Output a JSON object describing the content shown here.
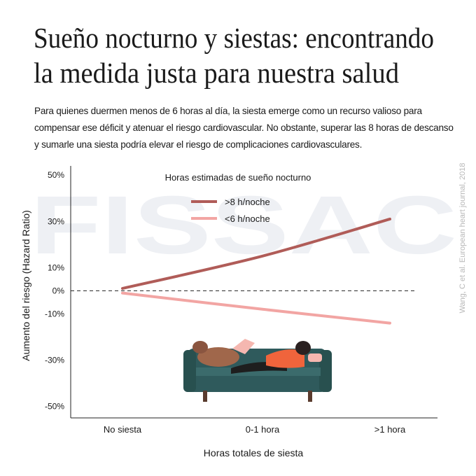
{
  "title": [
    "Sueño nocturno y siestas: encontrando",
    "la medida justa para  nuestra salud"
  ],
  "description": "Para quienes duermen menos de 6 horas al día, la siesta emerge como un recurso valioso para compensar ese déficit y atenuar el riesgo cardiovascular. No obstante, superar las 8 horas de descanso y sumarle una siesta podría elevar el riesgo de complicaciones cardiovasculares.",
  "watermark": "FISSAC",
  "source": "Wang, C et al. European heart journal, 2018",
  "chart_data": {
    "type": "line",
    "categories": [
      "No siesta",
      "0-1 hora",
      ">1 hora"
    ],
    "x_label": "Horas totales de siesta",
    "y_label": "Aumento del riesgo (Hazard Ratio)",
    "legend_title": "Horas estimadas de sueño nocturno",
    "ylim": [
      -55,
      54
    ],
    "yticks": [
      {
        "value": 50,
        "label": "50%"
      },
      {
        "value": 30,
        "label": "30%"
      },
      {
        "value": 10,
        "label": "10%"
      },
      {
        "value": 0,
        "label": "0%"
      },
      {
        "value": -10,
        "label": "-10%"
      },
      {
        "value": -30,
        "label": "-30%"
      },
      {
        "value": -50,
        "label": "-50%"
      }
    ],
    "reference_line": 0,
    "series": [
      {
        "name": ">8 h/noche",
        "color": "#b05c58",
        "values": [
          1,
          15,
          31
        ]
      },
      {
        "name": "<6 h/noche",
        "color": "#f2a5a3",
        "values": [
          -1,
          -8,
          -14
        ]
      }
    ]
  }
}
